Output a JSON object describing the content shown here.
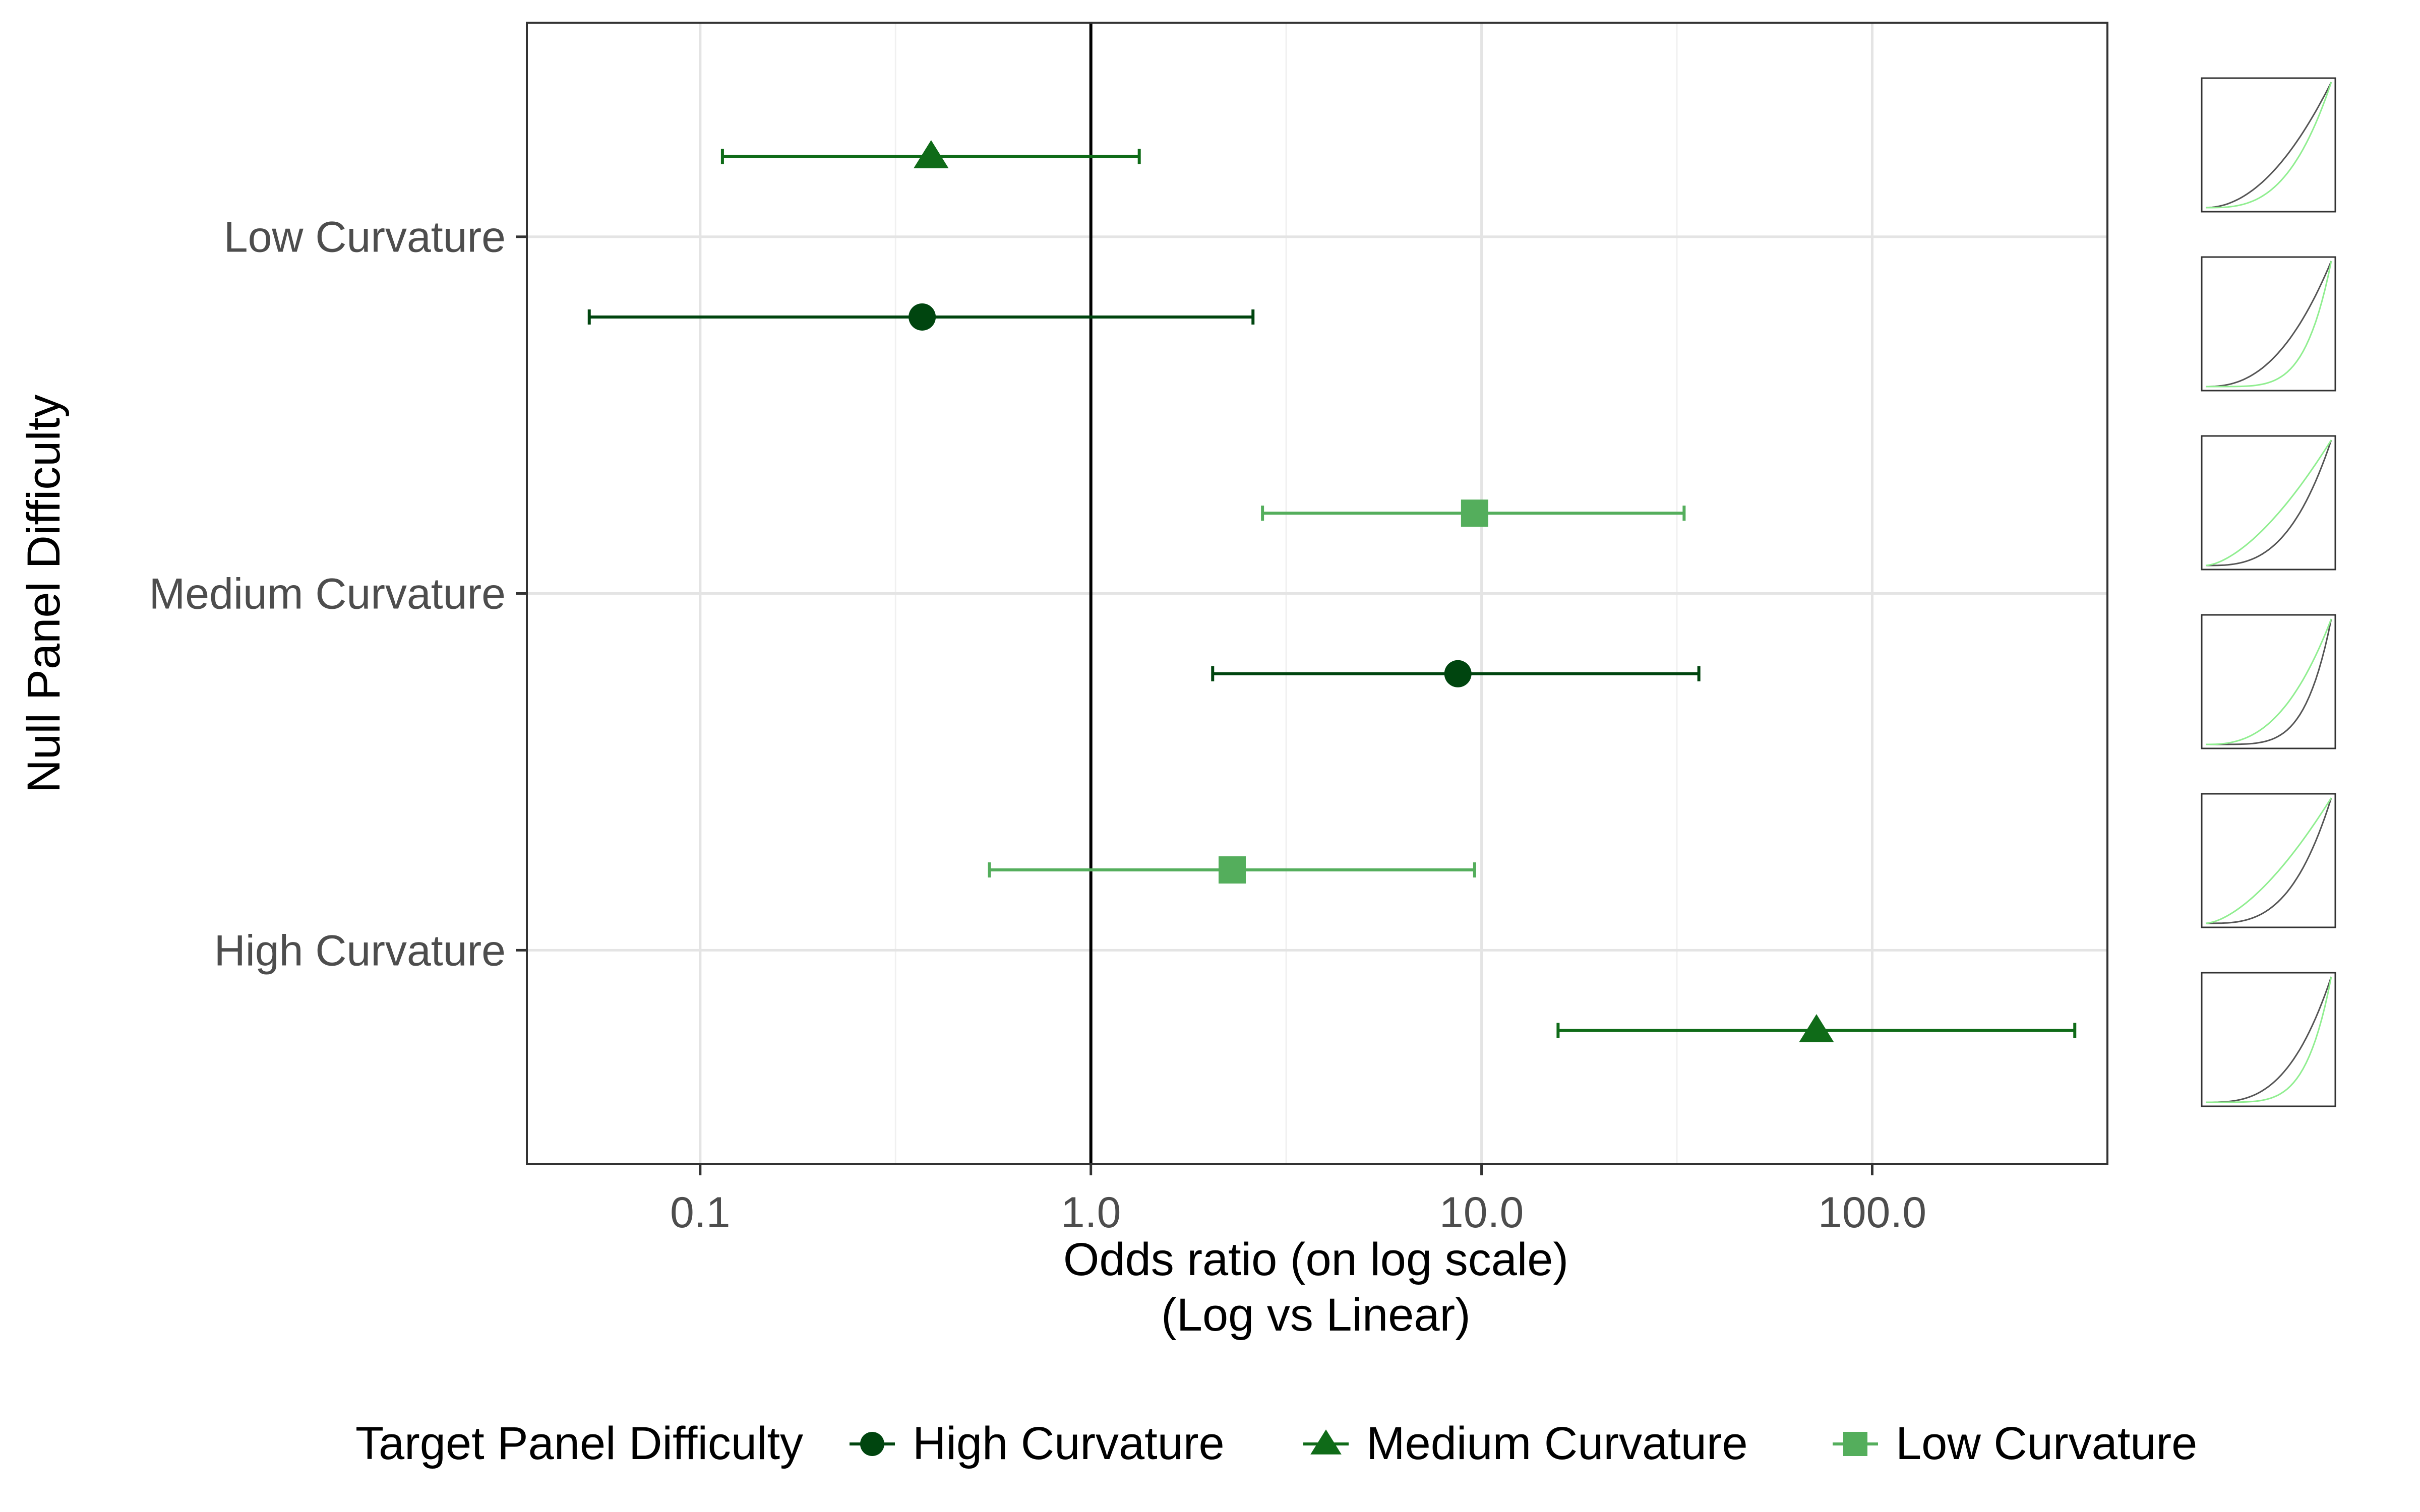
{
  "chart_data": {
    "type": "scatter",
    "title": "",
    "xlabel_lines": [
      "Odds ratio (on log scale)",
      "(Log vs Linear)"
    ],
    "ylabel": "Null Panel Difficulty",
    "x_scale": "log10",
    "xlim": [
      0.036,
      400
    ],
    "x_ticks": [
      0.1,
      1.0,
      10.0,
      100.0
    ],
    "x_tick_labels": [
      "0.1",
      "1.0",
      "10.0",
      "100.0"
    ],
    "reference_line_x": 1.0,
    "grid": true,
    "y_categories": [
      "Low Curvature",
      "Medium Curvature",
      "High Curvature"
    ],
    "legend": {
      "title": "Target Panel Difficulty",
      "placement": "bottom",
      "entries": [
        "High Curvature",
        "Medium Curvature",
        "Low Curvature"
      ]
    },
    "series": [
      {
        "name": "High Curvature",
        "color": "#00450f",
        "marker": "circle",
        "points": [
          {
            "null_panel": "Low Curvature",
            "estimate": 0.37,
            "lower": 0.052,
            "upper": 2.6
          },
          {
            "null_panel": "Medium Curvature",
            "estimate": 8.7,
            "lower": 2.05,
            "upper": 36.0
          }
        ]
      },
      {
        "name": "Medium Curvature",
        "color": "#0f6b18",
        "marker": "triangle",
        "points": [
          {
            "null_panel": "Low Curvature",
            "estimate": 0.39,
            "lower": 0.114,
            "upper": 1.33
          },
          {
            "null_panel": "High Curvature",
            "estimate": 72.0,
            "lower": 15.7,
            "upper": 330.0
          }
        ]
      },
      {
        "name": "Low Curvature",
        "color": "#54ae5c",
        "marker": "square",
        "points": [
          {
            "null_panel": "Medium Curvature",
            "estimate": 9.6,
            "lower": 2.75,
            "upper": 33.0
          },
          {
            "null_panel": "High Curvature",
            "estimate": 2.3,
            "lower": 0.55,
            "upper": 9.6
          }
        ]
      }
    ],
    "thumbnails": {
      "count": 6,
      "line_colors": [
        "#555555",
        "#90ee90"
      ]
    }
  }
}
